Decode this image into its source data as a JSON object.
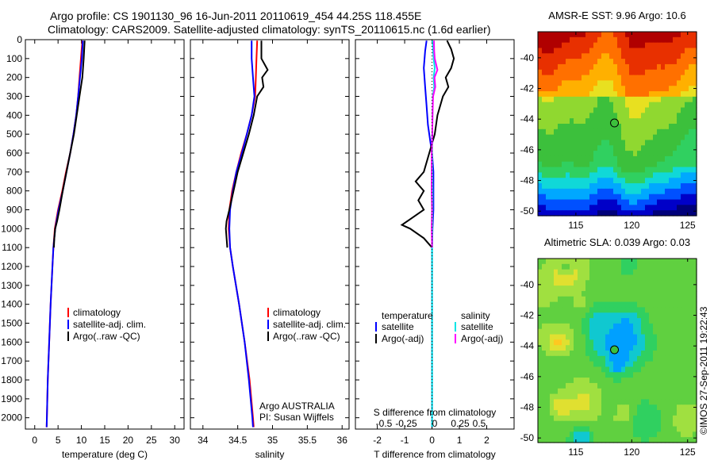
{
  "header": {
    "line1": "Argo profile: CS 1901130_96 16-Jun-2011 20110619_454 44.25S 118.455E",
    "line2": "Climatology: CARS2009. Satellite-adjusted climatology: synTS_20110615.nc (1.6d earlier)"
  },
  "colors": {
    "climatology": "#ff0000",
    "satellite": "#0000ff",
    "argo": "#000000",
    "argo_sal": "#ff00ff",
    "sat_sal": "#00e5e5"
  },
  "chart_data": [
    {
      "id": "temperature",
      "type": "line",
      "xlabel": "temperature (deg C)",
      "xticks": [
        "0",
        "5",
        "10",
        "15",
        "20",
        "25",
        "30"
      ],
      "xlim": [
        -2,
        32
      ],
      "ylim": [
        0,
        2060
      ],
      "yticks": [
        "0",
        "100",
        "200",
        "300",
        "400",
        "500",
        "600",
        "700",
        "800",
        "900",
        "1000",
        "1100",
        "1200",
        "1300",
        "1400",
        "1500",
        "1600",
        "1700",
        "1800",
        "1900",
        "2000"
      ],
      "legend": [
        "climatology",
        "satellite-adj. clim.",
        "Argo(..raw -QC)"
      ],
      "series": [
        {
          "name": "climatology",
          "color": "#ff0000",
          "depth": [
            5,
            100,
            200,
            300,
            400,
            500,
            600,
            700,
            800,
            900,
            1000,
            1100,
            1200,
            1400,
            1600,
            1800,
            2000,
            2050
          ],
          "values": [
            10.2,
            9.9,
            9.6,
            9.3,
            8.9,
            8.3,
            7.6,
            6.7,
            5.9,
            5.0,
            4.3,
            4.0,
            3.8,
            3.4,
            3.1,
            2.8,
            2.6,
            2.55
          ]
        },
        {
          "name": "satellite-adj. clim.",
          "color": "#0000ff",
          "depth": [
            5,
            100,
            200,
            300,
            400,
            500,
            600,
            700,
            800,
            900,
            1000,
            1100,
            1200,
            1400,
            1600,
            1800,
            2000,
            2050
          ],
          "values": [
            10.3,
            10.1,
            9.7,
            9.3,
            8.9,
            8.3,
            7.6,
            6.8,
            6.0,
            5.1,
            4.4,
            4.0,
            3.8,
            3.4,
            3.1,
            2.8,
            2.6,
            2.55
          ]
        },
        {
          "name": "Argo(..raw -QC)",
          "color": "#000000",
          "depth": [
            5,
            100,
            200,
            300,
            400,
            500,
            600,
            700,
            800,
            900,
            960,
            1000,
            1050,
            1100
          ],
          "values": [
            10.7,
            10.5,
            10.2,
            9.6,
            9.0,
            8.4,
            7.6,
            6.8,
            6.0,
            5.3,
            4.8,
            4.4,
            4.2,
            4.1
          ]
        }
      ]
    },
    {
      "id": "salinity",
      "type": "line",
      "xlabel": "salinity",
      "xticks": [
        "34",
        "34.5",
        "35",
        "35.5",
        "36"
      ],
      "xlim": [
        33.82,
        36.1
      ],
      "ylim": [
        0,
        2060
      ],
      "legend": [
        "climatology",
        "satellite-adj. clim.",
        "Argo(..raw -QC)"
      ],
      "annotation": [
        "Argo AUSTRALIA",
        "PI: Susan Wijffels"
      ],
      "series": [
        {
          "name": "climatology",
          "color": "#ff0000",
          "depth": [
            5,
            100,
            200,
            300,
            400,
            500,
            600,
            700,
            800,
            900,
            1000,
            1100,
            1200,
            1400,
            1600,
            1800,
            2000,
            2050
          ],
          "values": [
            34.78,
            34.77,
            34.76,
            34.75,
            34.7,
            34.63,
            34.55,
            34.48,
            34.42,
            34.38,
            34.37,
            34.39,
            34.43,
            34.52,
            34.6,
            34.67,
            34.72,
            34.73
          ]
        },
        {
          "name": "satellite-adj. clim.",
          "color": "#0000ff",
          "depth": [
            5,
            100,
            200,
            300,
            400,
            500,
            600,
            700,
            800,
            900,
            1000,
            1100,
            1200,
            1400,
            1600,
            1800,
            2000,
            2050
          ],
          "values": [
            34.7,
            34.7,
            34.72,
            34.74,
            34.7,
            34.63,
            34.56,
            34.48,
            34.43,
            34.39,
            34.38,
            34.39,
            34.43,
            34.52,
            34.6,
            34.66,
            34.71,
            34.72
          ]
        },
        {
          "name": "Argo(..raw -QC)",
          "color": "#000000",
          "depth": [
            5,
            100,
            160,
            200,
            250,
            300,
            400,
            500,
            600,
            700,
            800,
            900,
            960,
            1000,
            1050,
            1100
          ],
          "values": [
            34.84,
            34.84,
            34.93,
            34.85,
            34.87,
            34.78,
            34.73,
            34.66,
            34.58,
            34.5,
            34.44,
            34.38,
            34.34,
            34.33,
            34.34,
            34.35
          ]
        }
      ]
    },
    {
      "id": "difference",
      "type": "line",
      "xlabel": "T difference from climatology",
      "xlabel_top": "S difference from climatology",
      "xticks": [
        "-2",
        "-1",
        "0",
        "1",
        "2"
      ],
      "xticks_top": [
        "-0.5",
        "-0.25",
        "0",
        "0.25",
        "0.5"
      ],
      "xlim": [
        -2.8,
        3
      ],
      "ylim": [
        0,
        2060
      ],
      "legend_left": {
        "title": "temperature",
        "items": [
          "satellite",
          "Argo(-adj)"
        ]
      },
      "legend_right": {
        "title": "salinity",
        "items": [
          "satellite",
          "Argo(-adj)"
        ]
      },
      "series": [
        {
          "name": "temperature satellite",
          "color": "#0000ff",
          "depth": [
            5,
            60,
            150,
            250,
            350,
            450,
            550,
            600,
            700,
            800,
            900,
            1000,
            1100,
            1200,
            1400,
            1600,
            1800,
            2000,
            2050
          ],
          "values": [
            -0.2,
            -0.25,
            -0.3,
            -0.25,
            -0.2,
            -0.15,
            -0.05,
            0.0,
            0.05,
            0.05,
            0.05,
            0.02,
            0.0,
            0.0,
            0.0,
            0.0,
            0.0,
            0.0,
            0.0
          ]
        },
        {
          "name": "temperature Argo(-adj)",
          "color": "#000000",
          "depth": [
            5,
            50,
            100,
            150,
            200,
            250,
            300,
            400,
            500,
            600,
            700,
            750,
            800,
            850,
            900,
            950,
            980,
            1000,
            1050,
            1100
          ],
          "values": [
            0.55,
            0.7,
            0.8,
            0.7,
            0.5,
            0.6,
            0.4,
            0.2,
            0.1,
            -0.1,
            -0.3,
            -0.6,
            -0.3,
            -0.5,
            -0.3,
            -0.8,
            -1.1,
            -0.8,
            -0.3,
            0.0
          ]
        },
        {
          "name": "salinity satellite",
          "color": "#00e5e5",
          "depth": [
            5,
            100,
            150,
            200,
            250,
            300,
            400,
            500,
            600,
            700,
            800,
            900,
            1000,
            1100,
            1200,
            1400,
            1600,
            1800,
            2000,
            2050
          ],
          "values": [
            0.02,
            0.06,
            0.1,
            0.06,
            0.08,
            0.03,
            0.02,
            0.01,
            0.0,
            0.01,
            0.02,
            0.02,
            0.01,
            0.0,
            0.0,
            0.0,
            0.0,
            0.0,
            0.0,
            0.0
          ]
        },
        {
          "name": "salinity Argo(-adj)",
          "color": "#ff00ff",
          "depth": [
            5,
            60,
            100,
            160,
            200,
            250,
            300,
            400,
            500,
            600,
            700,
            800,
            900,
            1000,
            1100
          ],
          "values": [
            0.07,
            0.08,
            0.1,
            0.2,
            0.09,
            0.12,
            0.04,
            0.02,
            0.01,
            -0.01,
            -0.01,
            -0.01,
            0.0,
            -0.01,
            0.0
          ]
        }
      ]
    },
    {
      "id": "sst-map",
      "type": "heatmap",
      "title": "AMSR-E SST: 9.96 Argo: 10.6",
      "xticks": [
        "115",
        "120",
        "125"
      ],
      "yticks": [
        "-40",
        "-42",
        "-44",
        "-46",
        "-48",
        "-50"
      ],
      "xlim": [
        111.6,
        125.8
      ],
      "ylim": [
        -50.3,
        -38.3
      ],
      "marker": {
        "lon": 118.455,
        "lat": -44.25
      }
    },
    {
      "id": "sla-map",
      "type": "heatmap",
      "title": "Altimetric SLA: 0.039 Argo: 0.03",
      "xticks": [
        "115",
        "120",
        "125"
      ],
      "yticks": [
        "-40",
        "-42",
        "-44",
        "-46",
        "-48",
        "-50"
      ],
      "xlim": [
        111.6,
        125.8
      ],
      "ylim": [
        -50.3,
        -38.3
      ],
      "marker": {
        "lon": 118.455,
        "lat": -44.25
      }
    }
  ],
  "side_stamp": "©IMOS 27-Sep-2011 19:22:43"
}
